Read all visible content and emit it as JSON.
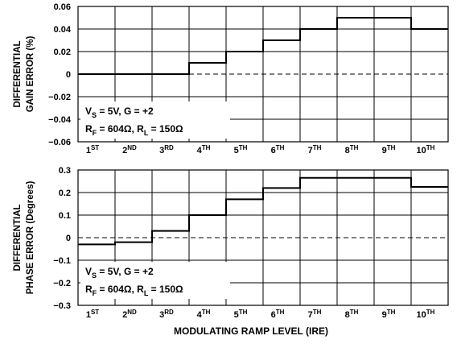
{
  "chart_data": [
    {
      "type": "line",
      "step": true,
      "ylabel_lines": [
        "DIFFERENTIAL",
        "GAIN ERROR (%)"
      ],
      "ylim": [
        -0.06,
        0.06
      ],
      "yticks": [
        "0.06",
        "0.04",
        "0.02",
        "0",
        "−0.02",
        "−0.04",
        "−0.06"
      ],
      "ytick_values": [
        0.06,
        0.04,
        0.02,
        0,
        -0.02,
        -0.04,
        -0.06
      ],
      "categories": [
        {
          "num": "1",
          "sup": "ST"
        },
        {
          "num": "2",
          "sup": "ND"
        },
        {
          "num": "3",
          "sup": "RD"
        },
        {
          "num": "4",
          "sup": "TH"
        },
        {
          "num": "5",
          "sup": "TH"
        },
        {
          "num": "6",
          "sup": "TH"
        },
        {
          "num": "7",
          "sup": "TH"
        },
        {
          "num": "8",
          "sup": "TH"
        },
        {
          "num": "9",
          "sup": "TH"
        },
        {
          "num": "10",
          "sup": "TH"
        }
      ],
      "values": [
        0,
        0,
        0,
        0.01,
        0.02,
        0.03,
        0.04,
        0.05,
        0.05,
        0.04
      ],
      "grid": true,
      "zero_line": "dashed",
      "annotation": {
        "line1": {
          "a": "V",
          "b": "S",
          "c": " = 5V, G = +2"
        },
        "line2": {
          "a": "R",
          "b": "F",
          "c": " = 604Ω, R",
          "d": "L",
          "e": " = 150Ω"
        }
      }
    },
    {
      "type": "line",
      "step": true,
      "ylabel_lines": [
        "DIFFERENTIAL",
        "PHASE ERROR (Degrees)"
      ],
      "ylim": [
        -0.3,
        0.3
      ],
      "yticks": [
        "0.3",
        "0.2",
        "0.1",
        "0",
        "−0.1",
        "−0.2",
        "−0.3"
      ],
      "ytick_values": [
        0.3,
        0.2,
        0.1,
        0,
        -0.1,
        -0.2,
        -0.3
      ],
      "categories": [
        {
          "num": "1",
          "sup": "ST"
        },
        {
          "num": "2",
          "sup": "ND"
        },
        {
          "num": "3",
          "sup": "RD"
        },
        {
          "num": "4",
          "sup": "TH"
        },
        {
          "num": "5",
          "sup": "TH"
        },
        {
          "num": "6",
          "sup": "TH"
        },
        {
          "num": "7",
          "sup": "TH"
        },
        {
          "num": "8",
          "sup": "TH"
        },
        {
          "num": "9",
          "sup": "TH"
        },
        {
          "num": "10",
          "sup": "TH"
        }
      ],
      "values": [
        -0.03,
        -0.02,
        0.03,
        0.1,
        0.17,
        0.22,
        0.265,
        0.265,
        0.265,
        0.225
      ],
      "grid": true,
      "zero_line": "dashed",
      "xlabel": "MODULATING RAMP LEVEL (IRE)",
      "annotation": {
        "line1": {
          "a": "V",
          "b": "S",
          "c": " = 5V, G = +2"
        },
        "line2": {
          "a": "R",
          "b": "F",
          "c": " = 604Ω, R",
          "d": "L",
          "e": " = 150Ω"
        }
      }
    }
  ]
}
